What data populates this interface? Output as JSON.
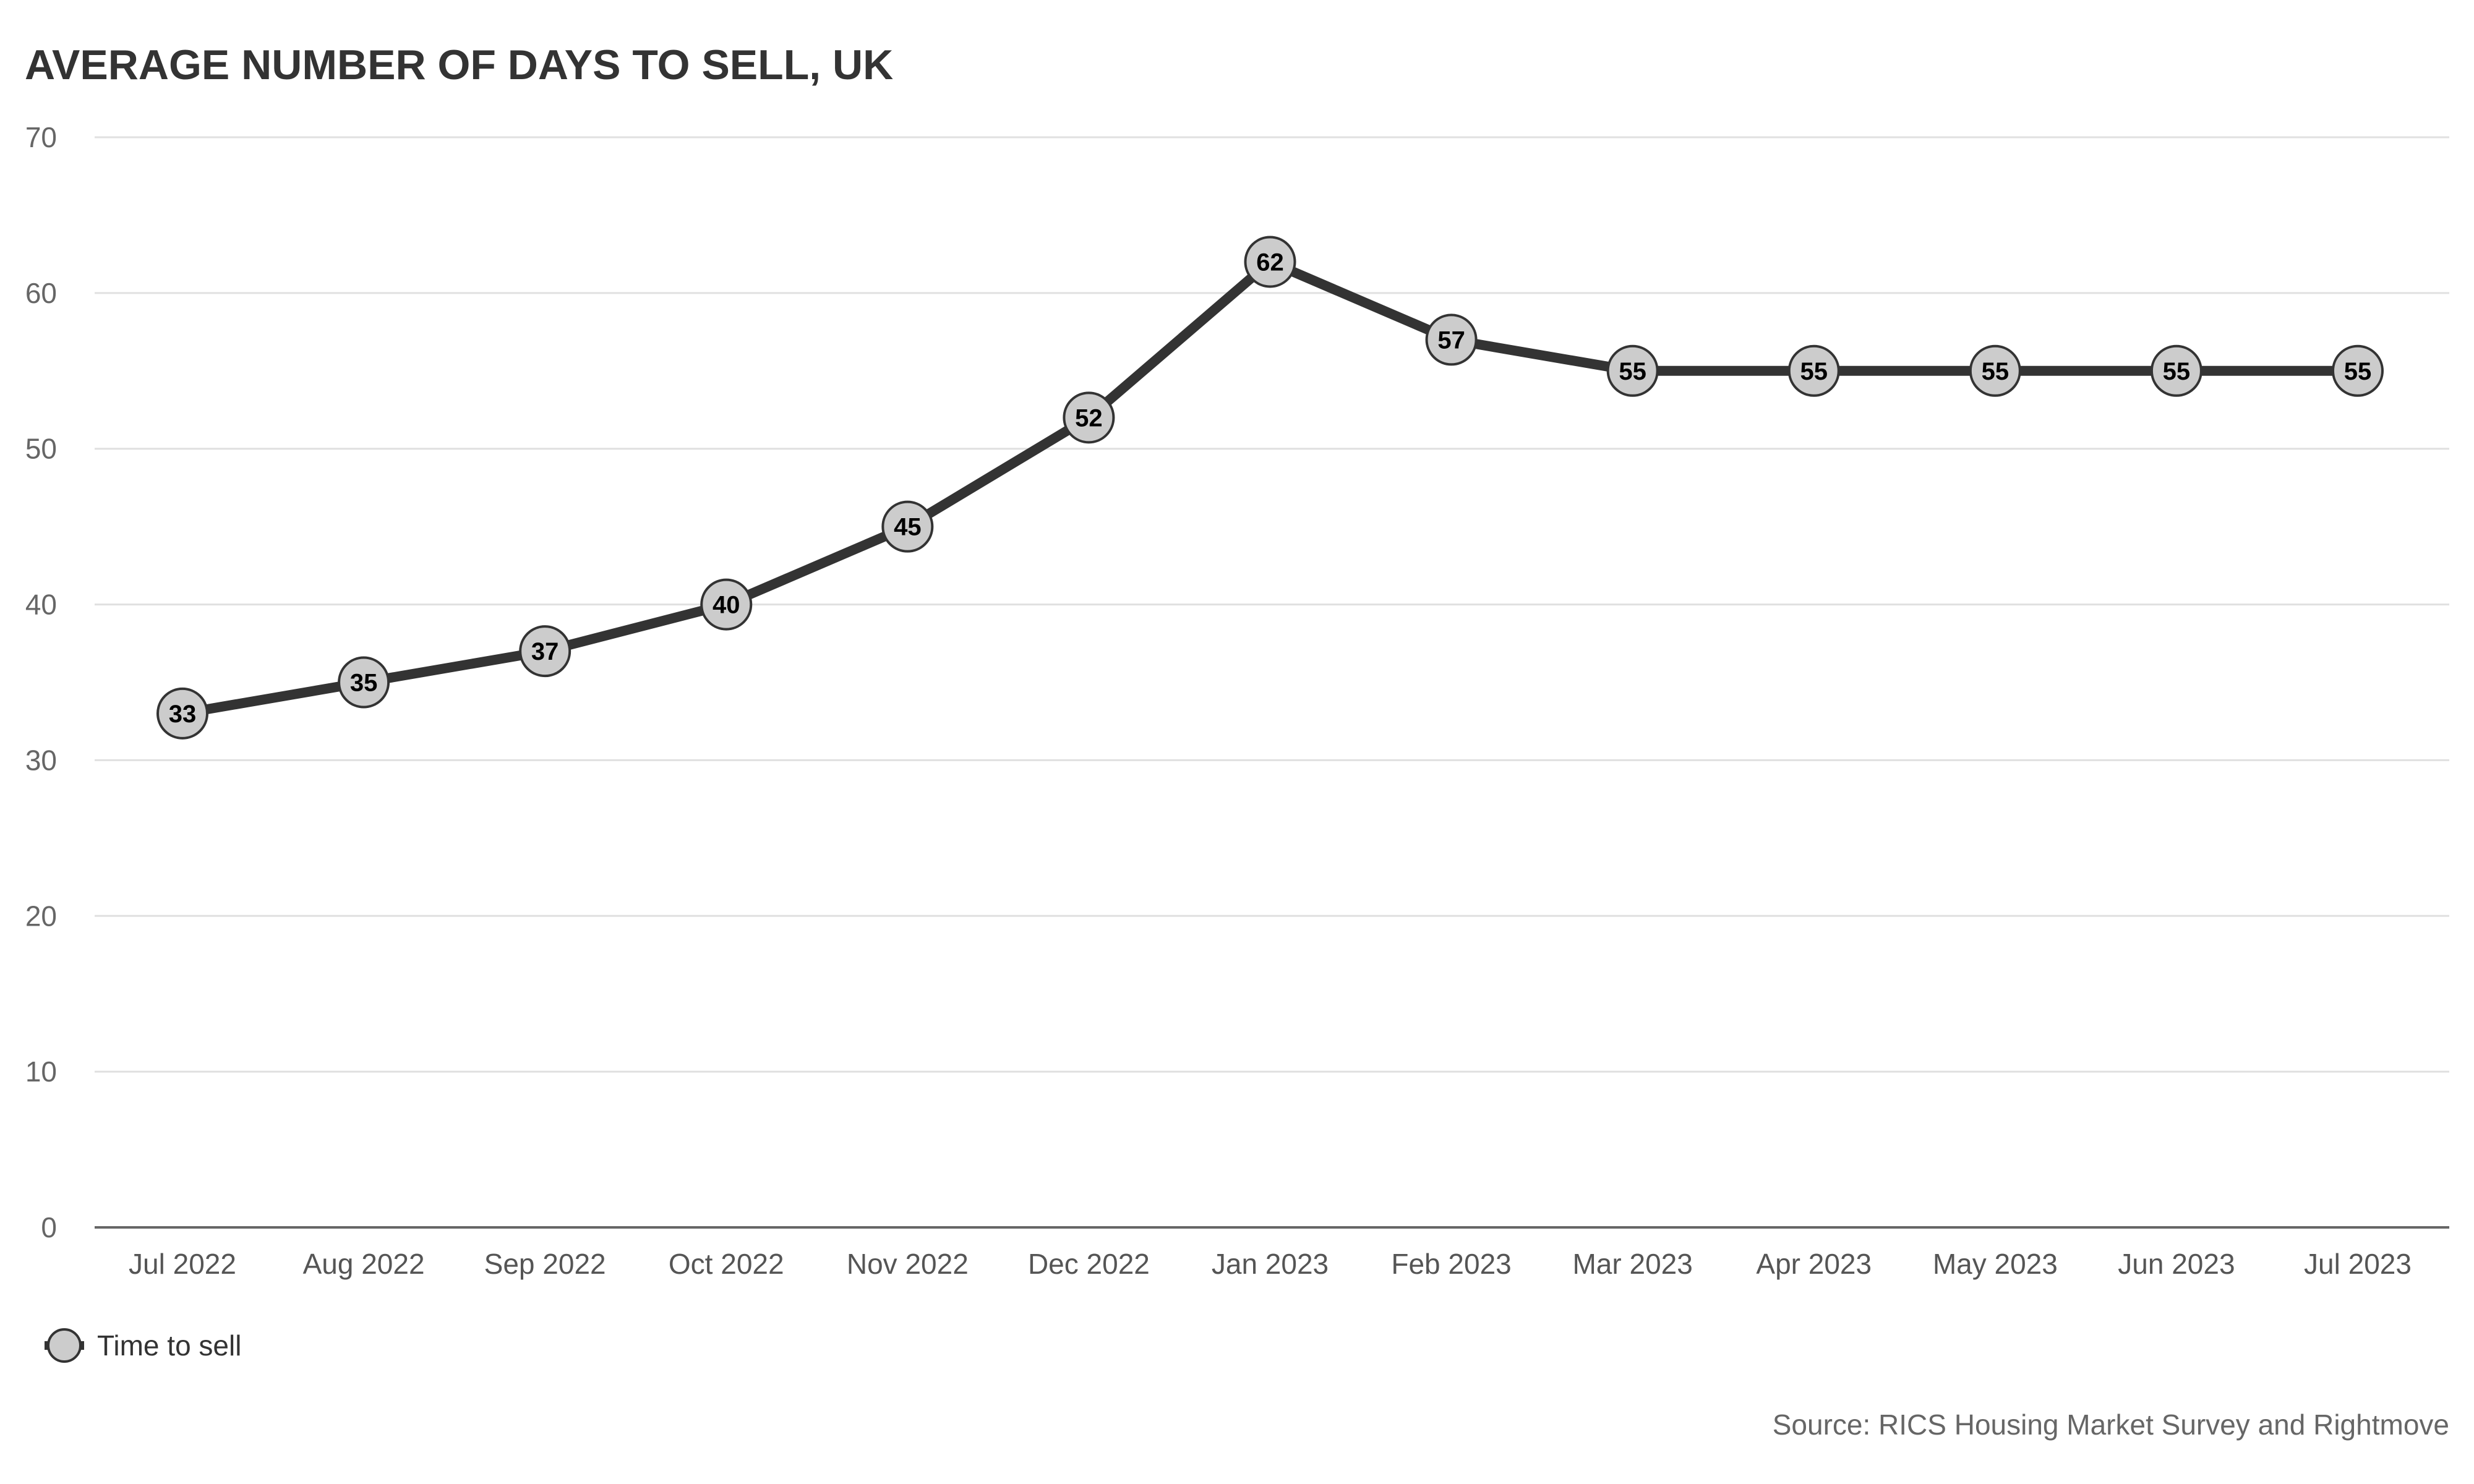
{
  "chart_data": {
    "type": "line",
    "title": "AVERAGE NUMBER OF DAYS TO SELL, UK",
    "categories": [
      "Jul 2022",
      "Aug 2022",
      "Sep 2022",
      "Oct 2022",
      "Nov 2022",
      "Dec 2022",
      "Jan 2023",
      "Feb 2023",
      "Mar 2023",
      "Apr 2023",
      "May 2023",
      "Jun 2023",
      "Jul 2023"
    ],
    "series": [
      {
        "name": "Time to sell",
        "values": [
          33,
          35,
          37,
          40,
          45,
          52,
          62,
          57,
          55,
          55,
          55,
          55,
          55
        ]
      }
    ],
    "xlabel": "",
    "ylabel": "",
    "ylim": [
      0,
      70
    ],
    "yticks": [
      0,
      10,
      20,
      30,
      40,
      50,
      60,
      70
    ],
    "grid": true,
    "legend": "bottom-left",
    "data_labels": true,
    "source": "Source: RICS Housing Market Survey and Rightmove",
    "colors": {
      "line": "#333333",
      "marker_fill": "#cccccc",
      "marker_stroke": "#333333",
      "grid": "#e0e0e0",
      "axis": "#666666"
    }
  }
}
